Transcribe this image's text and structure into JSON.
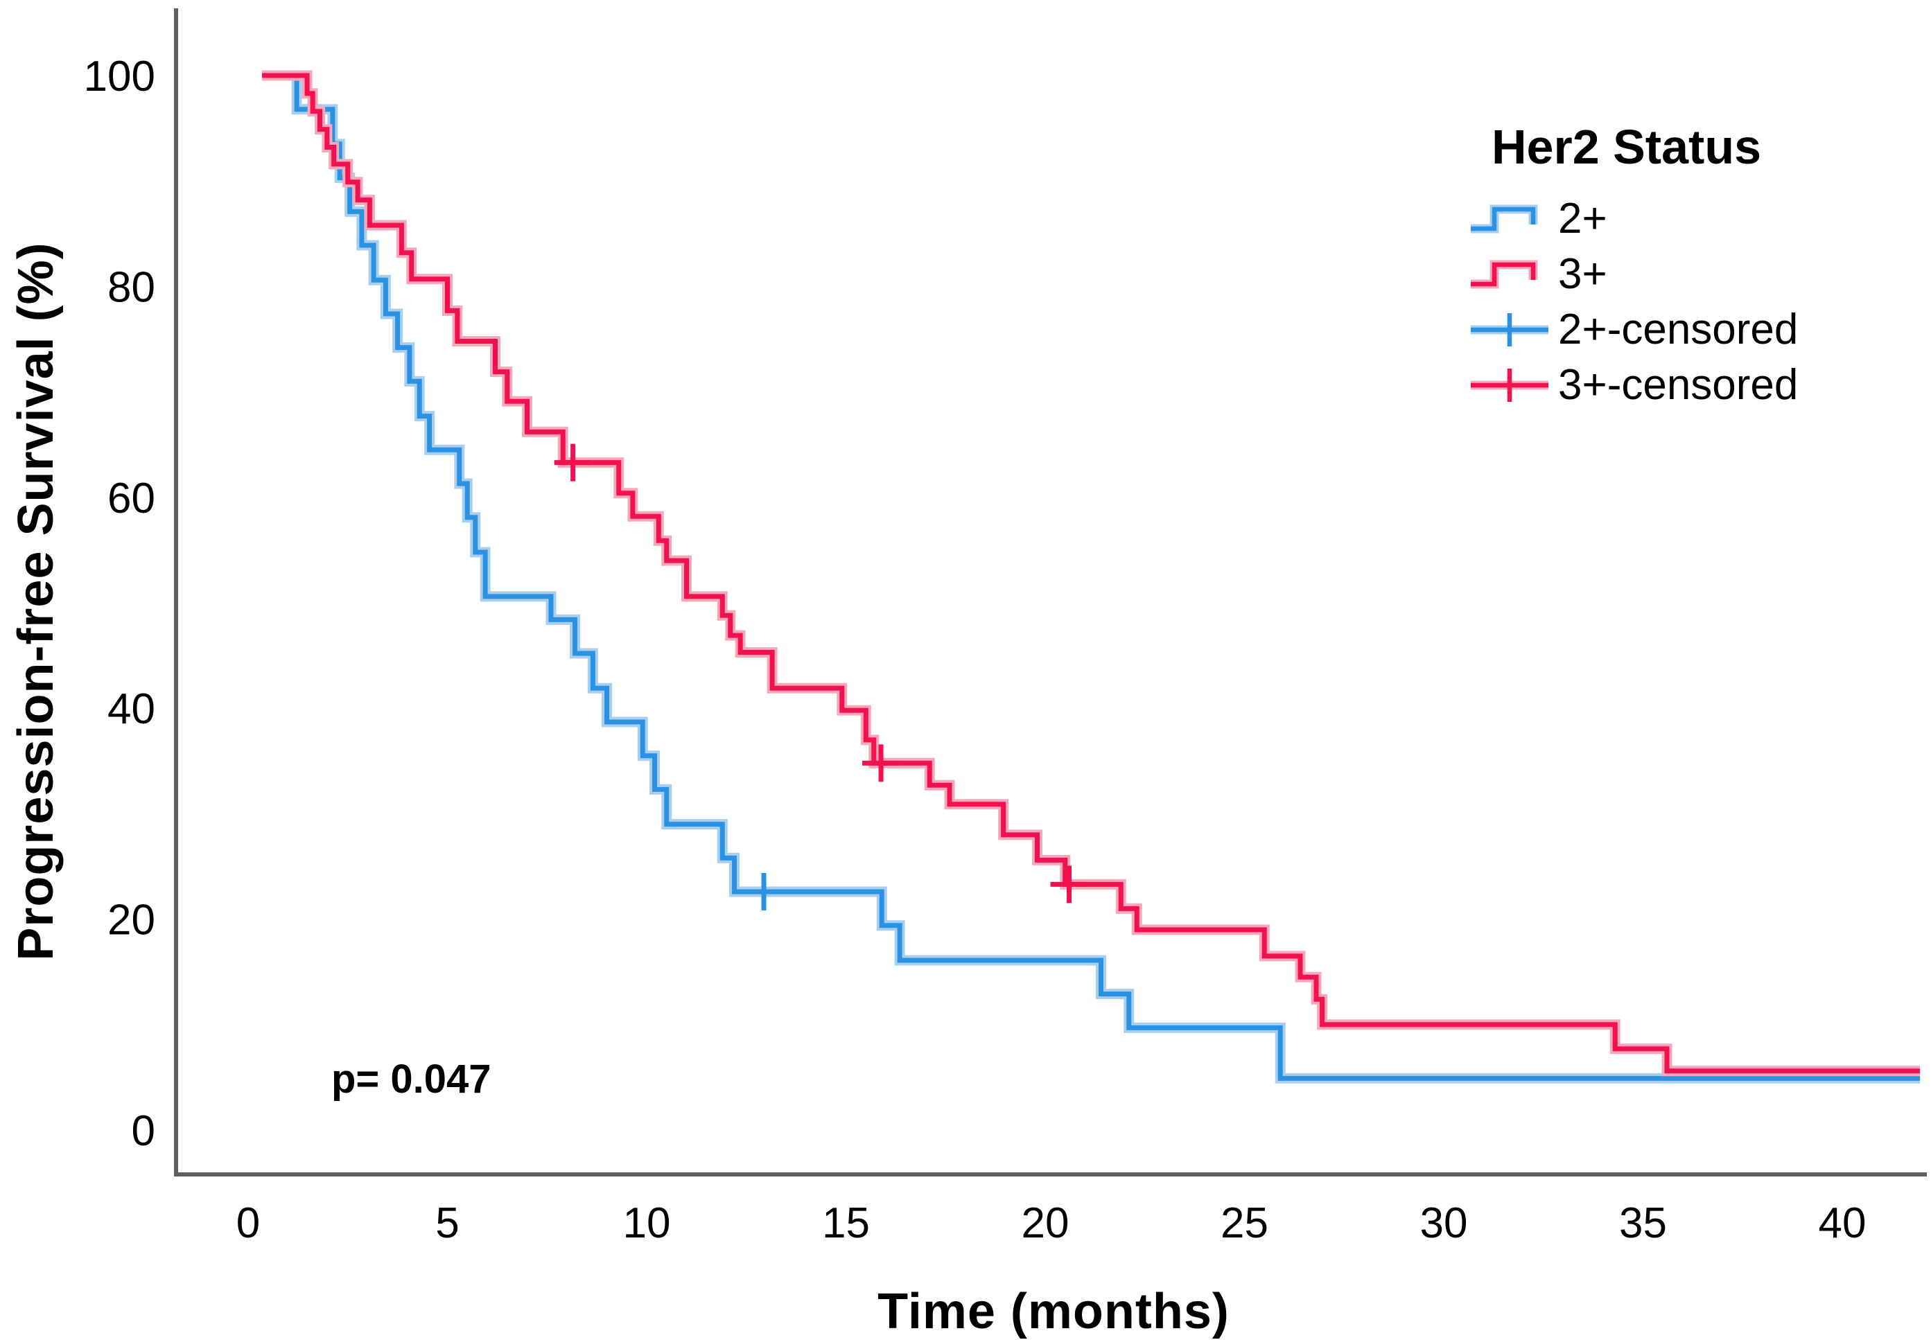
{
  "chart_data": {
    "type": "line",
    "subtype": "kaplan-meier-step-survival",
    "title": "",
    "xlabel": "Time (months)",
    "ylabel": "Progression-free Survival (%)",
    "xlim": [
      -1.8,
      42.2
    ],
    "ylim": [
      0,
      100
    ],
    "x_ticks": [
      0,
      5,
      10,
      15,
      20,
      25,
      30,
      35,
      40
    ],
    "y_ticks": [
      0,
      20,
      40,
      60,
      80,
      100
    ],
    "grid": false,
    "annotation": {
      "text": "p= 0.047"
    },
    "legend": {
      "title": "Her2 Status",
      "position": "right-top",
      "entries": [
        {
          "label": "2+",
          "kind": "line",
          "series": "2+"
        },
        {
          "label": "3+",
          "kind": "line",
          "series": "3+"
        },
        {
          "label": "2+-censored",
          "kind": "censor",
          "series": "2+"
        },
        {
          "label": "3+-censored",
          "kind": "censor",
          "series": "3+"
        }
      ]
    },
    "series": [
      {
        "name": "2+",
        "color": "#2B92E3",
        "halo_color": "#A8CFF0",
        "start_t": 0.35,
        "end_t": 41.95,
        "start_survival": 100,
        "steps": [
          [
            1.22,
            96.8
          ],
          [
            2.12,
            93.5
          ],
          [
            2.3,
            90.3
          ],
          [
            2.55,
            87.1
          ],
          [
            2.85,
            83.9
          ],
          [
            3.15,
            80.6
          ],
          [
            3.45,
            77.4
          ],
          [
            3.75,
            74.2
          ],
          [
            4.05,
            71.0
          ],
          [
            4.3,
            67.7
          ],
          [
            4.55,
            64.5
          ],
          [
            5.3,
            61.3
          ],
          [
            5.5,
            58.1
          ],
          [
            5.7,
            54.8
          ],
          [
            5.95,
            50.6
          ],
          [
            7.6,
            48.4
          ],
          [
            8.2,
            45.2
          ],
          [
            8.65,
            41.9
          ],
          [
            9.0,
            38.7
          ],
          [
            9.9,
            35.5
          ],
          [
            10.2,
            32.3
          ],
          [
            10.5,
            29.0
          ],
          [
            11.9,
            25.8
          ],
          [
            12.2,
            22.6
          ],
          [
            15.9,
            19.4
          ],
          [
            16.35,
            16.1
          ],
          [
            21.4,
            12.9
          ],
          [
            22.1,
            9.7
          ],
          [
            25.9,
            4.9
          ]
        ],
        "censored": [
          [
            12.94,
            22.6
          ]
        ]
      },
      {
        "name": "3+",
        "color": "#F2104E",
        "halo_color": "#F9A8BC",
        "start_t": 0.35,
        "end_t": 41.95,
        "start_survival": 100,
        "steps": [
          [
            1.48,
            98.3
          ],
          [
            1.62,
            96.6
          ],
          [
            1.8,
            94.9
          ],
          [
            1.98,
            93.2
          ],
          [
            2.15,
            91.6
          ],
          [
            2.5,
            89.9
          ],
          [
            2.75,
            88.2
          ],
          [
            3.05,
            85.8
          ],
          [
            3.85,
            83.2
          ],
          [
            4.1,
            80.7
          ],
          [
            5.0,
            77.7
          ],
          [
            5.25,
            74.8
          ],
          [
            6.2,
            71.9
          ],
          [
            6.5,
            69.1
          ],
          [
            7.0,
            66.2
          ],
          [
            7.9,
            63.3
          ],
          [
            9.3,
            60.4
          ],
          [
            9.65,
            58.2
          ],
          [
            10.3,
            55.9
          ],
          [
            10.5,
            54.0
          ],
          [
            11.0,
            50.6
          ],
          [
            11.9,
            48.8
          ],
          [
            12.1,
            46.9
          ],
          [
            12.35,
            45.3
          ],
          [
            13.15,
            41.9
          ],
          [
            14.9,
            39.8
          ],
          [
            15.5,
            37.0
          ],
          [
            15.7,
            34.8
          ],
          [
            17.1,
            32.7
          ],
          [
            17.6,
            30.9
          ],
          [
            18.95,
            28.0
          ],
          [
            19.8,
            25.6
          ],
          [
            20.5,
            23.3
          ],
          [
            21.9,
            21.0
          ],
          [
            22.3,
            19.0
          ],
          [
            25.5,
            16.5
          ],
          [
            26.4,
            14.5
          ],
          [
            26.8,
            12.4
          ],
          [
            26.95,
            10.0
          ],
          [
            34.3,
            7.7
          ],
          [
            35.6,
            5.6
          ]
        ],
        "censored": [
          [
            8.15,
            63.3
          ],
          [
            15.88,
            34.8
          ],
          [
            20.6,
            23.3
          ]
        ]
      }
    ]
  }
}
